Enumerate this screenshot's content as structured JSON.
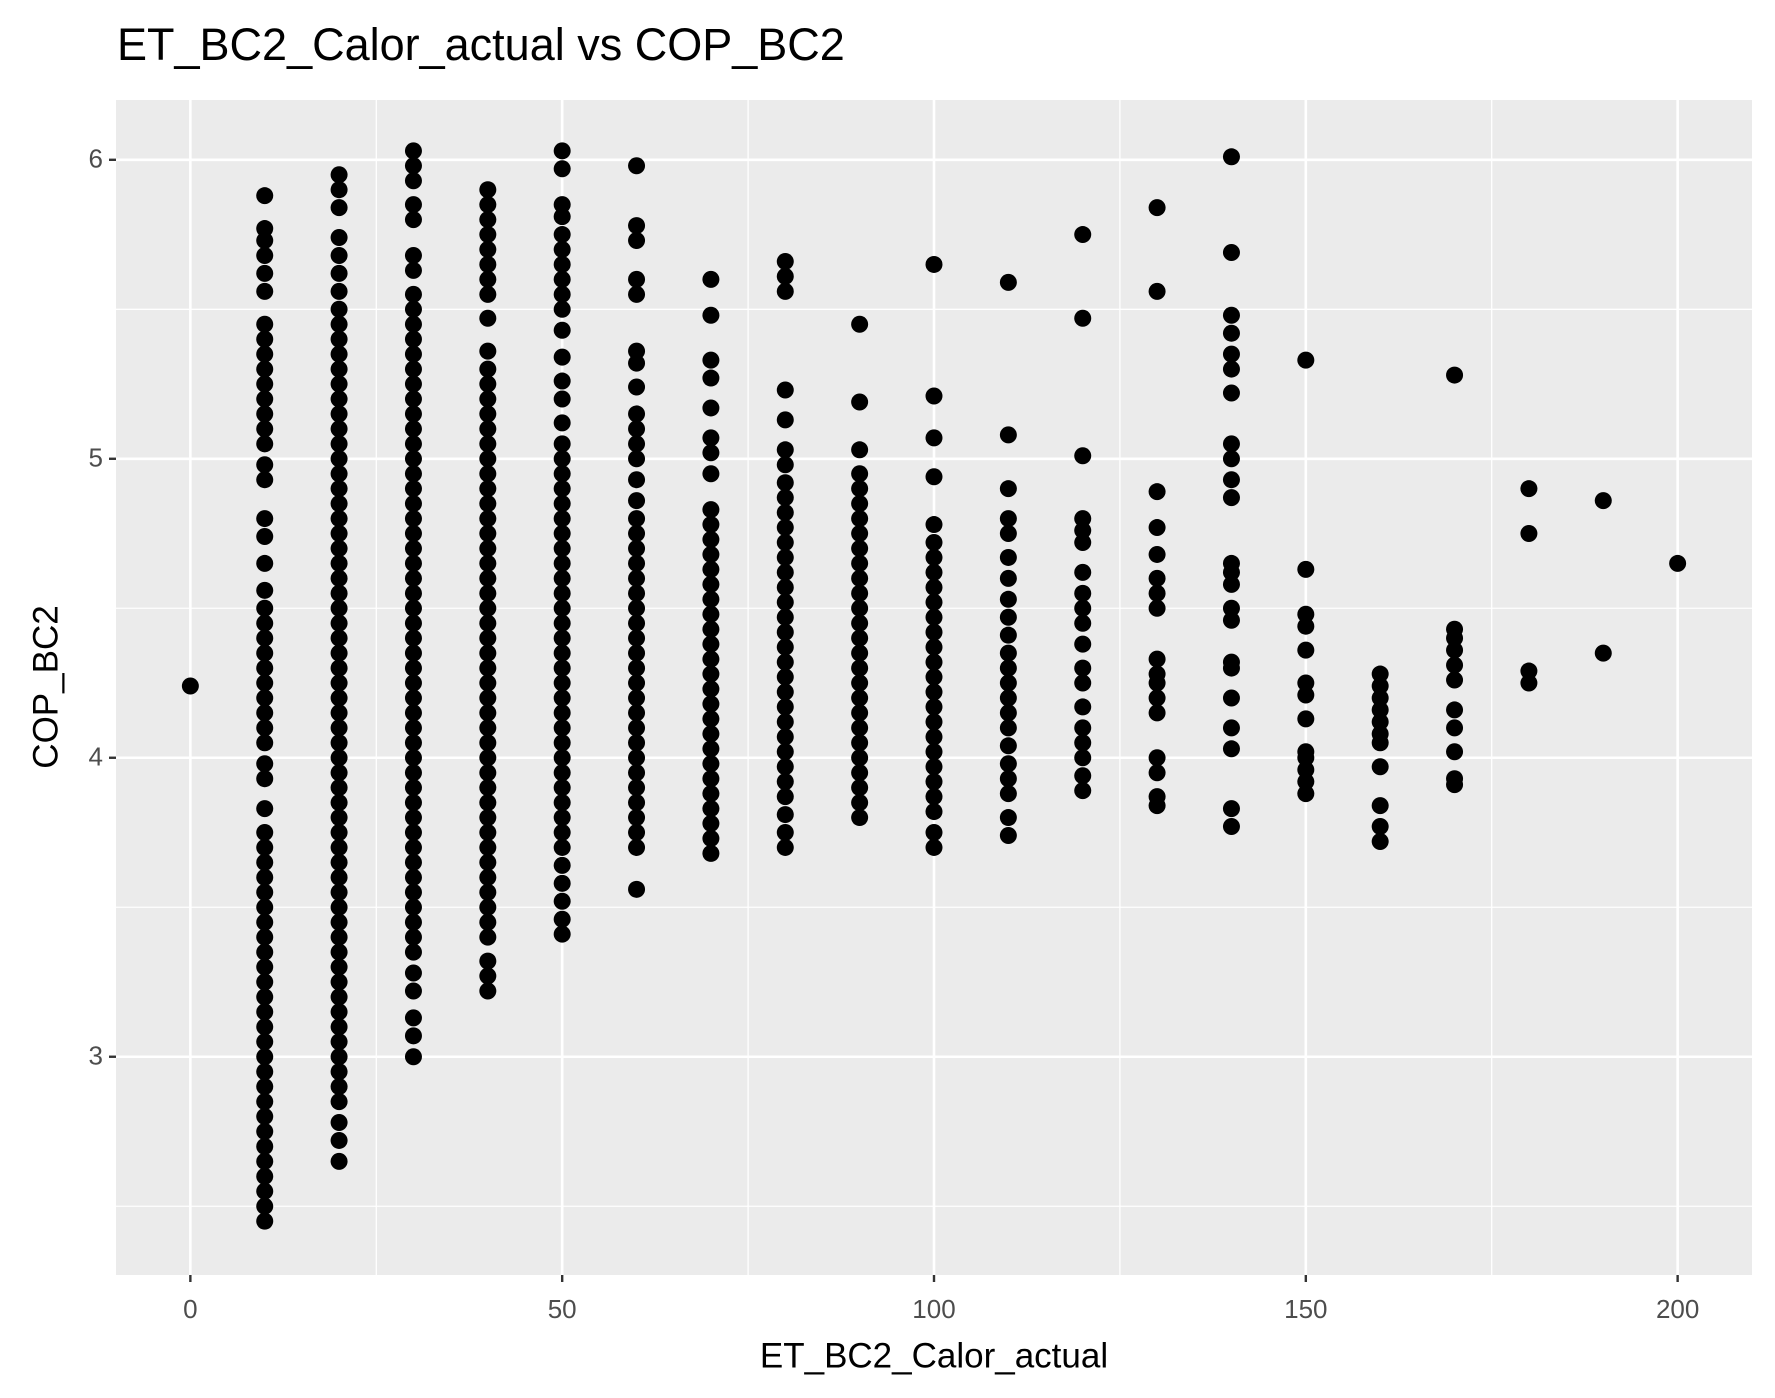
{
  "chart_data": {
    "type": "scatter",
    "title": "ET_BC2_Calor_actual vs COP_BC2",
    "x_label": "ET_BC2_Calor_actual",
    "y_label": "COP_BC2",
    "xlim": [
      -10,
      210
    ],
    "ylim": [
      2.27,
      6.2
    ],
    "xticks": [
      0,
      50,
      100,
      150,
      200
    ],
    "yticks": [
      3,
      4,
      5,
      6
    ],
    "minor_xticks": [
      25,
      75,
      125,
      175
    ],
    "minor_yticks": [
      2.5,
      3.5,
      4.5,
      5.5
    ],
    "grid": true,
    "color": "#000000",
    "columns": [
      {
        "x": 0,
        "values": [
          4.24
        ]
      },
      {
        "x": 10,
        "values": [
          2.45,
          2.5,
          2.55,
          2.6,
          2.65,
          2.7,
          2.75,
          2.8,
          2.85,
          2.9,
          2.95,
          3,
          3.05,
          3.1,
          3.15,
          3.2,
          3.25,
          3.3,
          3.35,
          3.4,
          3.45,
          3.5,
          3.55,
          3.6,
          3.65,
          3.7,
          3.75,
          3.83,
          3.93,
          3.98,
          4.05,
          4.1,
          4.15,
          4.2,
          4.25,
          4.3,
          4.35,
          4.4,
          4.45,
          4.5,
          4.56,
          4.65,
          4.74,
          4.8,
          4.93,
          4.98,
          5.05,
          5.1,
          5.15,
          5.2,
          5.25,
          5.3,
          5.35,
          5.4,
          5.45,
          5.56,
          5.62,
          5.68,
          5.73,
          5.77,
          5.88
        ]
      },
      {
        "x": 20,
        "values": [
          2.65,
          2.72,
          2.78,
          2.85,
          2.9,
          2.95,
          3,
          3.05,
          3.1,
          3.15,
          3.2,
          3.25,
          3.3,
          3.35,
          3.4,
          3.45,
          3.5,
          3.55,
          3.6,
          3.65,
          3.7,
          3.75,
          3.8,
          3.85,
          3.9,
          3.95,
          4,
          4.05,
          4.1,
          4.15,
          4.2,
          4.25,
          4.3,
          4.35,
          4.4,
          4.45,
          4.5,
          4.55,
          4.6,
          4.65,
          4.7,
          4.75,
          4.8,
          4.85,
          4.9,
          4.95,
          5,
          5.05,
          5.1,
          5.15,
          5.2,
          5.25,
          5.3,
          5.35,
          5.4,
          5.45,
          5.5,
          5.56,
          5.62,
          5.68,
          5.74,
          5.84,
          5.9,
          5.95
        ]
      },
      {
        "x": 30,
        "values": [
          3,
          3.07,
          3.13,
          3.22,
          3.28,
          3.35,
          3.4,
          3.45,
          3.5,
          3.55,
          3.6,
          3.65,
          3.7,
          3.75,
          3.8,
          3.85,
          3.9,
          3.95,
          4,
          4.05,
          4.1,
          4.15,
          4.2,
          4.25,
          4.3,
          4.35,
          4.4,
          4.45,
          4.5,
          4.55,
          4.6,
          4.65,
          4.7,
          4.75,
          4.8,
          4.85,
          4.9,
          4.95,
          5,
          5.05,
          5.1,
          5.15,
          5.2,
          5.25,
          5.3,
          5.35,
          5.4,
          5.45,
          5.5,
          5.55,
          5.63,
          5.68,
          5.8,
          5.85,
          5.93,
          5.98,
          6.03
        ]
      },
      {
        "x": 40,
        "values": [
          3.22,
          3.27,
          3.32,
          3.4,
          3.45,
          3.5,
          3.55,
          3.6,
          3.65,
          3.7,
          3.75,
          3.8,
          3.85,
          3.9,
          3.95,
          4,
          4.05,
          4.1,
          4.15,
          4.2,
          4.25,
          4.3,
          4.35,
          4.4,
          4.45,
          4.5,
          4.55,
          4.6,
          4.65,
          4.7,
          4.75,
          4.8,
          4.85,
          4.9,
          4.95,
          5,
          5.05,
          5.1,
          5.15,
          5.2,
          5.25,
          5.3,
          5.36,
          5.47,
          5.55,
          5.6,
          5.65,
          5.7,
          5.75,
          5.8,
          5.85,
          5.9
        ]
      },
      {
        "x": 50,
        "values": [
          3.41,
          3.46,
          3.52,
          3.58,
          3.64,
          3.7,
          3.75,
          3.8,
          3.85,
          3.9,
          3.95,
          4,
          4.05,
          4.1,
          4.15,
          4.2,
          4.25,
          4.3,
          4.35,
          4.4,
          4.45,
          4.5,
          4.55,
          4.6,
          4.65,
          4.7,
          4.75,
          4.8,
          4.85,
          4.9,
          4.95,
          5,
          5.05,
          5.12,
          5.2,
          5.26,
          5.34,
          5.43,
          5.5,
          5.55,
          5.6,
          5.65,
          5.7,
          5.75,
          5.81,
          5.85,
          5.97,
          6.03
        ]
      },
      {
        "x": 60,
        "values": [
          3.56,
          3.7,
          3.75,
          3.8,
          3.85,
          3.9,
          3.95,
          4,
          4.05,
          4.1,
          4.15,
          4.2,
          4.25,
          4.3,
          4.35,
          4.4,
          4.45,
          4.5,
          4.55,
          4.6,
          4.65,
          4.7,
          4.75,
          4.8,
          4.86,
          4.93,
          5,
          5.05,
          5.1,
          5.15,
          5.24,
          5.32,
          5.36,
          5.55,
          5.6,
          5.73,
          5.78,
          5.98
        ]
      },
      {
        "x": 70,
        "values": [
          3.68,
          3.73,
          3.78,
          3.83,
          3.88,
          3.93,
          3.98,
          4.03,
          4.08,
          4.13,
          4.18,
          4.23,
          4.28,
          4.33,
          4.38,
          4.43,
          4.48,
          4.53,
          4.58,
          4.63,
          4.68,
          4.73,
          4.78,
          4.83,
          4.95,
          5.02,
          5.07,
          5.17,
          5.27,
          5.33,
          5.48,
          5.6
        ]
      },
      {
        "x": 80,
        "values": [
          3.7,
          3.75,
          3.81,
          3.87,
          3.92,
          3.97,
          4.02,
          4.07,
          4.12,
          4.17,
          4.22,
          4.27,
          4.32,
          4.37,
          4.42,
          4.47,
          4.52,
          4.57,
          4.62,
          4.67,
          4.72,
          4.77,
          4.82,
          4.87,
          4.92,
          4.98,
          5.03,
          5.13,
          5.23,
          5.56,
          5.61,
          5.66
        ]
      },
      {
        "x": 90,
        "values": [
          3.8,
          3.85,
          3.9,
          3.95,
          4,
          4.05,
          4.1,
          4.15,
          4.2,
          4.25,
          4.3,
          4.35,
          4.4,
          4.45,
          4.5,
          4.55,
          4.6,
          4.65,
          4.7,
          4.75,
          4.8,
          4.85,
          4.9,
          4.95,
          5.03,
          5.19,
          5.45
        ]
      },
      {
        "x": 100,
        "values": [
          3.7,
          3.75,
          3.82,
          3.87,
          3.92,
          3.97,
          4.02,
          4.07,
          4.12,
          4.17,
          4.22,
          4.27,
          4.32,
          4.37,
          4.42,
          4.47,
          4.52,
          4.57,
          4.62,
          4.67,
          4.72,
          4.78,
          4.94,
          5.07,
          5.21,
          5.65
        ]
      },
      {
        "x": 110,
        "values": [
          3.74,
          3.8,
          3.88,
          3.93,
          3.98,
          4.04,
          4.1,
          4.15,
          4.2,
          4.25,
          4.3,
          4.35,
          4.41,
          4.47,
          4.53,
          4.6,
          4.67,
          4.75,
          4.8,
          4.9,
          5.08,
          5.59
        ]
      },
      {
        "x": 120,
        "values": [
          3.89,
          3.94,
          4,
          4.05,
          4.1,
          4.17,
          4.25,
          4.3,
          4.38,
          4.45,
          4.5,
          4.55,
          4.62,
          4.72,
          4.76,
          4.8,
          5.01,
          5.47,
          5.75
        ]
      },
      {
        "x": 130,
        "values": [
          3.84,
          3.87,
          3.95,
          4,
          4.15,
          4.2,
          4.25,
          4.28,
          4.33,
          4.5,
          4.55,
          4.6,
          4.68,
          4.77,
          4.89,
          5.56,
          5.84
        ]
      },
      {
        "x": 140,
        "values": [
          3.77,
          3.83,
          4.03,
          4.1,
          4.2,
          4.3,
          4.32,
          4.46,
          4.5,
          4.58,
          4.62,
          4.65,
          4.87,
          4.93,
          5,
          5.05,
          5.22,
          5.3,
          5.35,
          5.42,
          5.48,
          5.69,
          6.01
        ]
      },
      {
        "x": 150,
        "values": [
          3.88,
          3.92,
          3.96,
          4,
          4.02,
          4.13,
          4.21,
          4.25,
          4.36,
          4.44,
          4.48,
          4.63,
          5.33
        ]
      },
      {
        "x": 160,
        "values": [
          3.72,
          3.77,
          3.84,
          3.97,
          4.05,
          4.08,
          4.12,
          4.16,
          4.2,
          4.24,
          4.28
        ]
      },
      {
        "x": 170,
        "values": [
          3.91,
          3.93,
          4.02,
          4.1,
          4.16,
          4.26,
          4.31,
          4.36,
          4.4,
          4.43,
          5.28
        ]
      },
      {
        "x": 180,
        "values": [
          4.25,
          4.29,
          4.75,
          4.9
        ]
      },
      {
        "x": 190,
        "values": [
          4.35,
          4.86
        ]
      },
      {
        "x": 200,
        "values": [
          4.65
        ]
      }
    ]
  }
}
